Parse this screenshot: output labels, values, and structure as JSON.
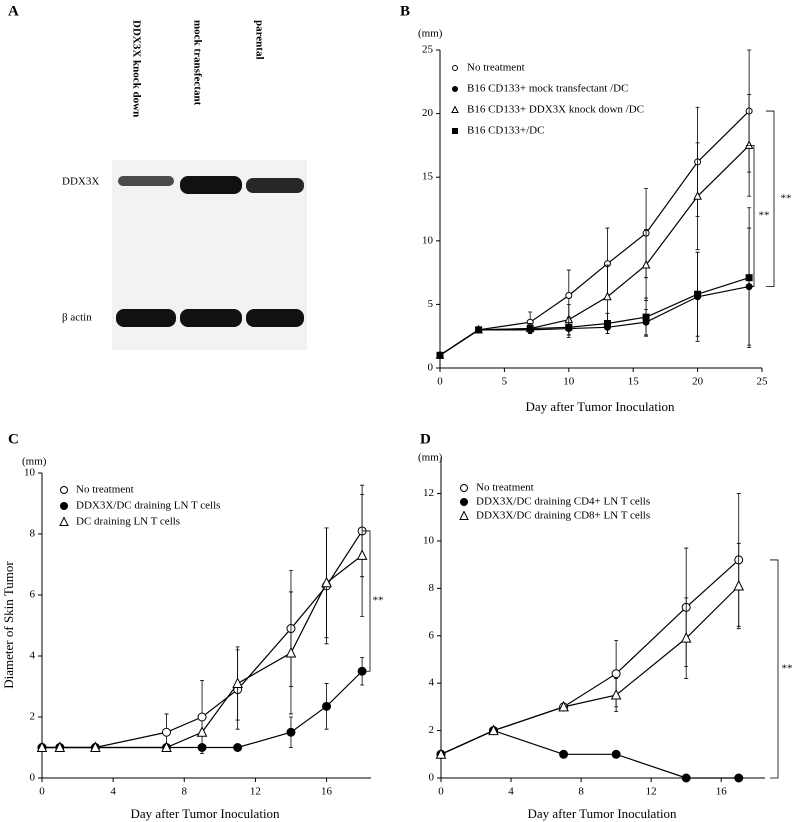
{
  "blot": {
    "panel_label": "A",
    "lanes": [
      "DDX3X knock down",
      "mock transfectant",
      "parental"
    ],
    "rows": [
      "DDX3X",
      "β actin"
    ]
  },
  "chart_data": [
    {
      "type": "line",
      "panel_label": "B",
      "y_unit": "(mm)",
      "xlabel": "Day after Tumor Inoculation",
      "x": [
        0,
        3,
        7,
        10,
        13,
        16,
        20,
        24
      ],
      "xlim": [
        0,
        25
      ],
      "xticks": [
        0,
        5,
        10,
        15,
        20,
        25
      ],
      "ylim": [
        0,
        25
      ],
      "yticks": [
        0,
        5,
        10,
        15,
        20,
        25
      ],
      "series": [
        {
          "name": "No treatment",
          "marker": "open-circle",
          "color": "#000",
          "values": [
            1,
            3,
            3.6,
            5.7,
            8.2,
            10.6,
            16.2,
            20.2
          ],
          "errors": [
            null,
            null,
            0.8,
            2.0,
            2.8,
            3.5,
            4.3,
            4.8
          ]
        },
        {
          "name": "B16 CD133+ mock transfectant /DC",
          "marker": "filled-circle",
          "color": "#000",
          "values": [
            1,
            3,
            3.0,
            3.1,
            3.2,
            3.6,
            5.6,
            6.4
          ],
          "errors": [
            null,
            null,
            0.3,
            0.5,
            0.5,
            1.0,
            3.5,
            4.6
          ]
        },
        {
          "name": "B16 CD133+ DDX3X knock down /DC",
          "marker": "open-triangle",
          "color": "#000",
          "values": [
            1,
            3,
            3.1,
            3.8,
            5.6,
            8.1,
            13.5,
            17.5
          ],
          "errors": [
            null,
            null,
            0.4,
            1.2,
            2.5,
            2.8,
            4.2,
            4.0
          ]
        },
        {
          "name": "B16 CD133+/DC",
          "marker": "filled-square",
          "color": "#000",
          "values": [
            1,
            3,
            3.1,
            3.2,
            3.5,
            4.0,
            5.8,
            7.1
          ],
          "errors": [
            null,
            null,
            0.4,
            0.8,
            0.8,
            1.5,
            3.3,
            5.5
          ]
        }
      ],
      "annotations": [
        "**",
        "**"
      ]
    },
    {
      "type": "line",
      "panel_label": "C",
      "y_unit": "(mm)",
      "ylabel": "Diameter of Skin Tumor",
      "xlabel": "Day after Tumor Inoculation",
      "x": [
        0,
        1,
        3,
        7,
        9,
        11,
        14,
        16,
        18
      ],
      "xlim": [
        0,
        18.5
      ],
      "xticks": [
        0,
        4,
        8,
        12,
        16
      ],
      "ylim": [
        0,
        10
      ],
      "yticks": [
        0,
        2,
        4,
        6,
        8,
        10
      ],
      "series": [
        {
          "name": "No treatment",
          "marker": "open-circle",
          "color": "#000",
          "values": [
            1,
            1,
            1,
            1.5,
            2,
            2.9,
            4.9,
            6.3,
            8.1
          ],
          "errors": [
            null,
            null,
            null,
            0.6,
            1.2,
            1.3,
            1.9,
            1.9,
            1.5
          ]
        },
        {
          "name": "DDX3X/DC draining LN T cells",
          "marker": "filled-circle",
          "color": "#000",
          "values": [
            1,
            1,
            1,
            1,
            1,
            1,
            1.5,
            2.35,
            3.5
          ],
          "errors": [
            null,
            null,
            null,
            null,
            null,
            null,
            0.5,
            0.75,
            0.45
          ]
        },
        {
          "name": "DC draining LN T cells",
          "marker": "open-triangle",
          "color": "#000",
          "values": [
            1,
            1,
            1,
            1,
            1.5,
            3.1,
            4.1,
            6.4,
            7.3
          ],
          "errors": [
            null,
            null,
            null,
            null,
            null,
            1.2,
            2.0,
            1.8,
            2.0
          ]
        }
      ],
      "annotations": [
        "**"
      ]
    },
    {
      "type": "line",
      "panel_label": "D",
      "y_unit": "(mm)",
      "xlabel": "Day after Tumor Inoculation",
      "x": [
        0,
        3,
        7,
        10,
        14,
        17
      ],
      "xlim": [
        0,
        18.5
      ],
      "xticks": [
        0,
        4,
        8,
        12,
        16
      ],
      "ylim": [
        0,
        13.5
      ],
      "yticks": [
        0,
        2,
        4,
        6,
        8,
        10,
        12
      ],
      "series": [
        {
          "name": "No treatment",
          "marker": "open-circle",
          "color": "#000",
          "values": [
            1,
            2,
            3,
            4.4,
            7.2,
            9.2
          ],
          "errors": [
            null,
            null,
            null,
            1.4,
            2.5,
            2.8
          ]
        },
        {
          "name": "DDX3X/DC draining  CD4+ LN T cells",
          "marker": "filled-circle",
          "color": "#000",
          "values": [
            1,
            2,
            1,
            1,
            0,
            0
          ],
          "errors": [
            null,
            null,
            null,
            null,
            null,
            null
          ]
        },
        {
          "name": "DDX3X/DC draining  CD8+ LN T cells",
          "marker": "open-triangle",
          "color": "#000",
          "values": [
            1,
            2,
            3,
            3.5,
            5.9,
            8.1
          ],
          "errors": [
            null,
            null,
            null,
            0.7,
            1.7,
            1.8
          ]
        }
      ],
      "annotations": [
        "**"
      ]
    }
  ]
}
